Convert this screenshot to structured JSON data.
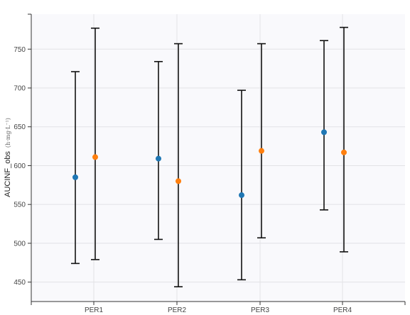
{
  "chart_data": {
    "type": "scatter",
    "categories": [
      "PER1",
      "PER2",
      "PER3",
      "PER4"
    ],
    "ylabel": "AUCINF_obs",
    "ylabel_unit": "(h·mg·L⁻¹)",
    "ylim": [
      425,
      795
    ],
    "yticks": [
      450,
      500,
      550,
      600,
      650,
      700,
      750
    ],
    "grid": true,
    "series": [
      {
        "color": "#1f77b4",
        "points": [
          {
            "category": "PER1",
            "mean": 585,
            "low": 474,
            "high": 721
          },
          {
            "category": "PER2",
            "mean": 609,
            "low": 505,
            "high": 734
          },
          {
            "category": "PER3",
            "mean": 562,
            "low": 453,
            "high": 697
          },
          {
            "category": "PER4",
            "mean": 643,
            "low": 543,
            "high": 761
          }
        ]
      },
      {
        "color": "#ff7f0e",
        "points": [
          {
            "category": "PER1",
            "mean": 611,
            "low": 479,
            "high": 777
          },
          {
            "category": "PER2",
            "mean": 580,
            "low": 444,
            "high": 757
          },
          {
            "category": "PER3",
            "mean": 619,
            "low": 507,
            "high": 757
          },
          {
            "category": "PER4",
            "mean": 617,
            "low": 489,
            "high": 778
          }
        ]
      }
    ]
  }
}
